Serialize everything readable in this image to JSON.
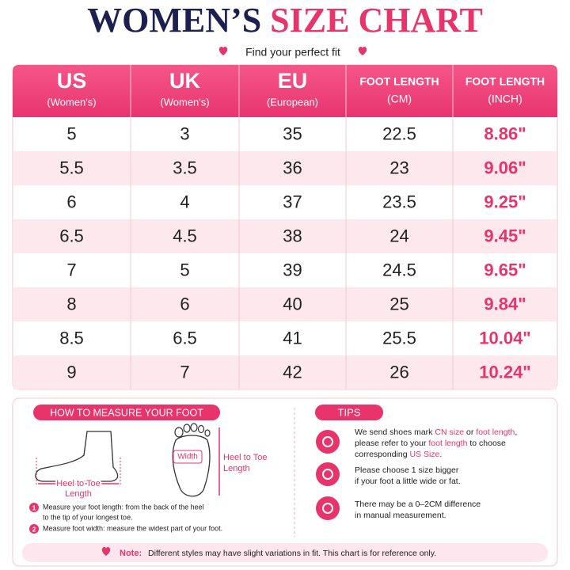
{
  "header": {
    "title": [
      {
        "text": "WOMEN’S ",
        "color": "#1b2050"
      },
      {
        "text": "SIZE CHART",
        "color": "#e8336b"
      }
    ],
    "subtitle": "Find your perfect fit"
  },
  "table": {
    "columns": [
      {
        "title": "US",
        "subtitle": "(Women's)"
      },
      {
        "title": "UK",
        "subtitle": "(Women's)"
      },
      {
        "title": "EU",
        "subtitle": "(European)"
      },
      {
        "title": "FOOT LENGTH",
        "subtitle": "(CM)"
      },
      {
        "title": "FOOT LENGTH",
        "subtitle": "(INCH)"
      }
    ],
    "rows": [
      [
        "5",
        "3",
        "35",
        "22.5",
        "8.86\""
      ],
      [
        "5.5",
        "3.5",
        "36",
        "23",
        "9.06\""
      ],
      [
        "6",
        "4",
        "37",
        "23.5",
        "9.25\""
      ],
      [
        "6.5",
        "4.5",
        "38",
        "24",
        "9.45\""
      ],
      [
        "7",
        "5",
        "39",
        "24.5",
        "9.65\""
      ],
      [
        "8",
        "6",
        "40",
        "25",
        "9.84\""
      ],
      [
        "8.5",
        "6.5",
        "41",
        "25.5",
        "10.04\""
      ],
      [
        "9",
        "7",
        "42",
        "26",
        "10.24\""
      ]
    ]
  },
  "measure": {
    "title": "HOW TO MEASURE YOUR FOOT",
    "length_label": [
      "Heel to Toe",
      "Length"
    ],
    "width_label": "Width",
    "top_length_label": [
      "Heel to Toe",
      "Length"
    ],
    "steps": [
      {
        "number": "1",
        "lines": [
          "Measure your foot length: from the back of the heel",
          "to the tip of your longest toe."
        ]
      },
      {
        "number": "2",
        "lines": [
          "Measure foot width: measure the widest part of your foot."
        ]
      }
    ]
  },
  "tips": {
    "title": "TIPS",
    "items": [
      {
        "lines": [
          [
            {
              "text": "We send shoes mark "
            },
            {
              "text": "CN size",
              "color": "#e8336b"
            },
            {
              "text": " or "
            },
            {
              "text": "foot length",
              "color": "#e8336b"
            },
            {
              "text": ","
            }
          ],
          [
            {
              "text": "please refer to your "
            },
            {
              "text": "foot length",
              "color": "#e8336b"
            },
            {
              "text": " to choose"
            }
          ],
          [
            {
              "text": "corresponding "
            },
            {
              "text": "US Size",
              "color": "#e8336b"
            },
            {
              "text": "."
            }
          ]
        ]
      },
      {
        "lines": [
          [
            {
              "text": "Please choose 1 size bigger"
            }
          ],
          [
            {
              "text": "if your foot a little wide or fat."
            }
          ]
        ]
      },
      {
        "lines": [
          [
            {
              "text": "There may be a 0–2CM difference"
            }
          ],
          [
            {
              "text": "in manual measurement."
            }
          ]
        ]
      }
    ]
  },
  "note": {
    "label": "Note:",
    "text": "Different styles may have slight variations in fit. This chart is for reference only."
  }
}
